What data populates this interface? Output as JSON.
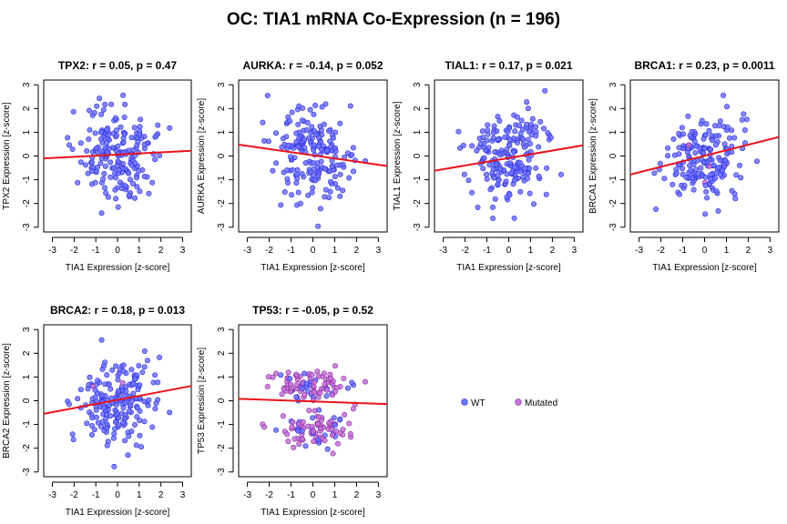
{
  "title": "OC: TIA1 mRNA Co-Expression (n = 196)",
  "colors": {
    "wt_fill": "#6e72ff",
    "wt_stroke": "#2b2bd6",
    "mutated_fill": "#c473d6",
    "mutated_stroke": "#8a2ba0",
    "regression_line": "#e8141a"
  },
  "legend": {
    "placement": "right of bottom row",
    "items": [
      {
        "label": "WT",
        "color": "#6e72ff"
      },
      {
        "label": "Mutated",
        "color": "#c473d6"
      }
    ]
  },
  "chart_data": [
    {
      "type": "scatter",
      "gene": "TPX2",
      "title": "TPX2: r = 0.05, p = 0.47",
      "xlabel": "TIA1 Expression [z-score]",
      "ylabel": "TPX2 Expression [z-score]",
      "xlim": [
        -3.4,
        3.4
      ],
      "ylim": [
        -3.2,
        3.2
      ],
      "xticks": [
        "-3",
        "-2",
        "-1",
        "0",
        "1",
        "2",
        "3"
      ],
      "yticks": [
        "-3",
        "-2",
        "-1",
        "0",
        "1",
        "2",
        "3"
      ],
      "regression": {
        "x": [
          -3.4,
          3.4
        ],
        "y": [
          -0.1,
          0.22
        ]
      },
      "mutated_count": 0
    },
    {
      "type": "scatter",
      "gene": "AURKA",
      "title": "AURKA: r = -0.14, p = 0.052",
      "xlabel": "TIA1 Expression [z-score]",
      "ylabel": "AURKA Expression [z-score]",
      "xlim": [
        -3.4,
        3.4
      ],
      "ylim": [
        -3.2,
        3.2
      ],
      "xticks": [
        "-3",
        "-2",
        "-1",
        "0",
        "1",
        "2",
        "3"
      ],
      "yticks": [
        "-3",
        "-2",
        "-1",
        "0",
        "1",
        "2",
        "3"
      ],
      "regression": {
        "x": [
          -3.4,
          3.4
        ],
        "y": [
          0.48,
          -0.42
        ]
      },
      "mutated_count": 0
    },
    {
      "type": "scatter",
      "gene": "TIAL1",
      "title": "TIAL1: r = 0.17, p = 0.021",
      "xlabel": "TIA1 Expression [z-score]",
      "ylabel": "TIAL1 Expression [z-score]",
      "xlim": [
        -3.4,
        3.4
      ],
      "ylim": [
        -3.2,
        3.2
      ],
      "xticks": [
        "-3",
        "-2",
        "-1",
        "0",
        "1",
        "2",
        "3"
      ],
      "yticks": [
        "-3",
        "-2",
        "-1",
        "0",
        "1",
        "2",
        "3"
      ],
      "regression": {
        "x": [
          -3.4,
          3.4
        ],
        "y": [
          -0.62,
          0.45
        ]
      },
      "mutated_count": 0
    },
    {
      "type": "scatter",
      "gene": "BRCA1",
      "title": "BRCA1: r = 0.23, p = 0.0011",
      "xlabel": "TIA1 Expression [z-score]",
      "ylabel": "BRCA1 Expression [z-score]",
      "xlim": [
        -3.4,
        3.4
      ],
      "ylim": [
        -3.2,
        3.2
      ],
      "xticks": [
        "-3",
        "-2",
        "-1",
        "0",
        "1",
        "2",
        "3"
      ],
      "yticks": [
        "-3",
        "-2",
        "-1",
        "0",
        "1",
        "2",
        "3"
      ],
      "regression": {
        "x": [
          -3.4,
          3.4
        ],
        "y": [
          -0.78,
          0.8
        ]
      },
      "mutated_count": 4
    },
    {
      "type": "scatter",
      "gene": "BRCA2",
      "title": "BRCA2: r = 0.18, p = 0.013",
      "xlabel": "TIA1 Expression [z-score]",
      "ylabel": "BRCA2 Expression [z-score]",
      "xlim": [
        -3.4,
        3.4
      ],
      "ylim": [
        -3.2,
        3.2
      ],
      "xticks": [
        "-3",
        "-2",
        "-1",
        "0",
        "1",
        "2",
        "3"
      ],
      "yticks": [
        "-3",
        "-2",
        "-1",
        "0",
        "1",
        "2",
        "3"
      ],
      "regression": {
        "x": [
          -3.4,
          3.4
        ],
        "y": [
          -0.55,
          0.62
        ]
      },
      "mutated_count": 3
    },
    {
      "type": "scatter",
      "gene": "TP53",
      "title": "TP53: r = -0.05, p = 0.52",
      "xlabel": "TIA1 Expression [z-score]",
      "ylabel": "TP53 Expression [z-score]",
      "xlim": [
        -3.4,
        3.4
      ],
      "ylim": [
        -3.2,
        3.2
      ],
      "xticks": [
        "-3",
        "-2",
        "-1",
        "0",
        "1",
        "2",
        "3"
      ],
      "yticks": [
        "-3",
        "-2",
        "-1",
        "0",
        "1",
        "2",
        "3"
      ],
      "regression": {
        "x": [
          -3.4,
          3.4
        ],
        "y": [
          0.08,
          -0.14
        ]
      },
      "mutated_count": 150
    }
  ]
}
